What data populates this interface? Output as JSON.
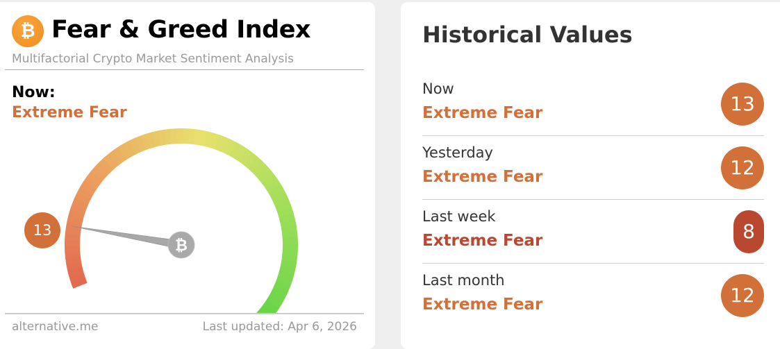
{
  "index_card": {
    "logo_icon": "bitcoin-icon",
    "title": "Fear & Greed Index",
    "subtitle": "Multifactorial Crypto Market Sentiment Analysis",
    "now_label": "Now:",
    "now_status": "Extreme Fear",
    "value": "13",
    "gauge_value": 13,
    "gauge_range": [
      0,
      100
    ],
    "footer_source": "alternative.me",
    "footer_updated": "Last updated: Apr 6, 2026"
  },
  "historical": {
    "title": "Historical Values",
    "rows": [
      {
        "label": "Now",
        "status": "Extreme Fear",
        "value": "13"
      },
      {
        "label": "Yesterday",
        "status": "Extreme Fear",
        "value": "12"
      },
      {
        "label": "Last week",
        "status": "Extreme Fear",
        "value": "8"
      },
      {
        "label": "Last month",
        "status": "Extreme Fear",
        "value": "12"
      }
    ]
  },
  "colors": {
    "extreme_fear": "#d2703a",
    "extreme_fear_dark": "#b8482f",
    "bitcoin": "#f7931a"
  }
}
